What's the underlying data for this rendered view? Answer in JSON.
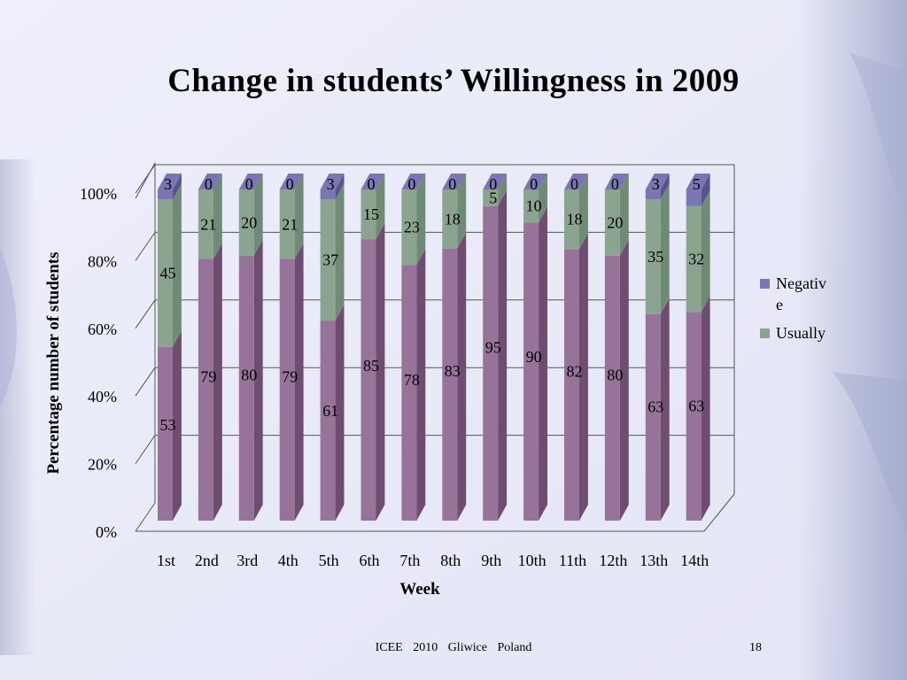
{
  "slide": {
    "title": "Change in students’ Willingness in 2009",
    "footer": [
      "ICEE",
      "2010",
      "Gliwice",
      "Poland"
    ],
    "page_number": "18"
  },
  "colors": {
    "background": "#e9eaf8",
    "usually_front": "#8aa48f",
    "usually_side": "#6f8a75",
    "usually_top": "#a6bca8",
    "willing_front": "#987399",
    "willing_side": "#6e4d70",
    "negative_front": "#7a76b4",
    "negative_side": "#57538e",
    "negative_top": "#8a86c0"
  },
  "chart_data": {
    "type": "bar",
    "stacked": true,
    "percent_stacked": true,
    "three_d": true,
    "title": "Change in students’ Willingness in 2009",
    "xlabel": "Week",
    "ylabel": "Percentage number of students",
    "categories": [
      "1st",
      "2nd",
      "3rd",
      "4th",
      "5th",
      "6th",
      "7th",
      "8th",
      "9th",
      "10th",
      "11th",
      "12th",
      "13th",
      "14th"
    ],
    "y_ticks": [
      "0%",
      "20%",
      "40%",
      "60%",
      "80%",
      "100%"
    ],
    "ylim": [
      0,
      100
    ],
    "grid": true,
    "legend_position": "right",
    "series": [
      {
        "values": [
          53,
          79,
          80,
          79,
          61,
          85,
          78,
          83,
          95,
          90,
          82,
          80,
          63,
          63
        ]
      },
      {
        "name": "Usually",
        "values": [
          45,
          21,
          20,
          21,
          37,
          15,
          23,
          18,
          5,
          10,
          18,
          20,
          35,
          32
        ]
      },
      {
        "name": "Negative",
        "values": [
          3,
          0,
          0,
          0,
          3,
          0,
          0,
          0,
          0,
          0,
          0,
          0,
          3,
          5
        ]
      }
    ],
    "legend": [
      {
        "label": "Negativ\ne",
        "color": "#7a76b4"
      },
      {
        "label": "Usually",
        "color": "#8aa48f"
      }
    ]
  }
}
